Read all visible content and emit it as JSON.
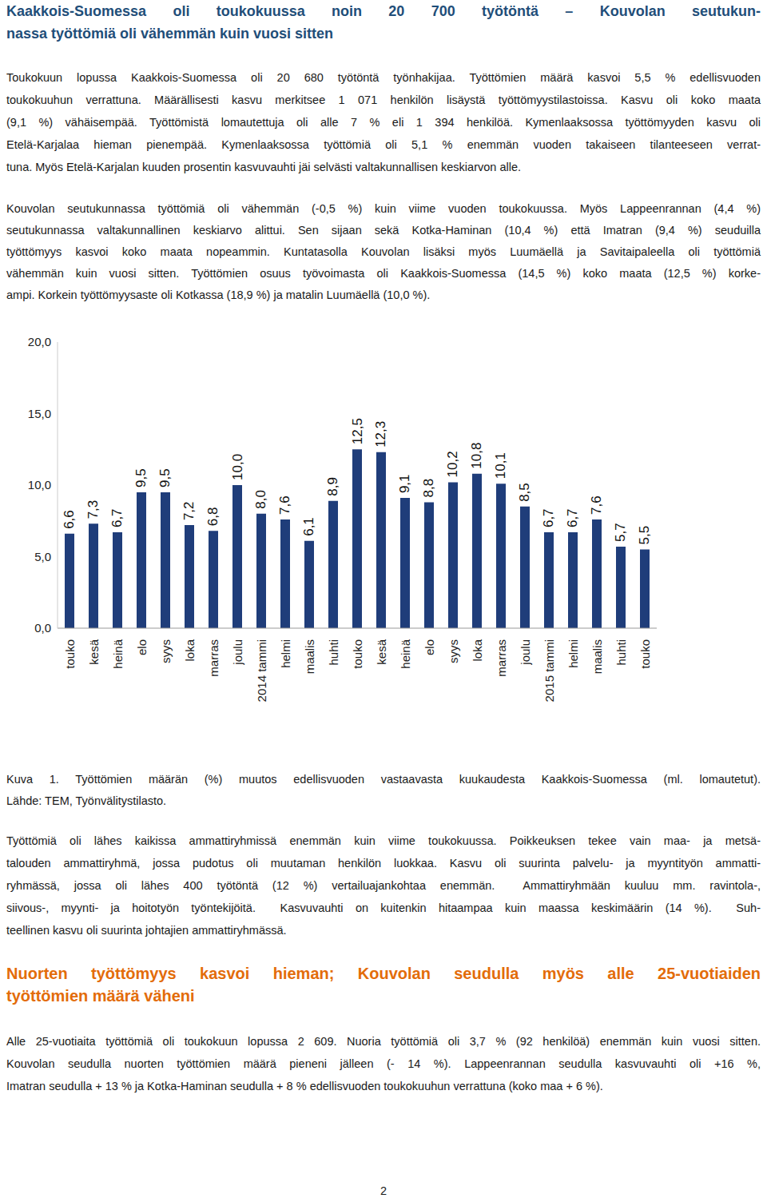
{
  "header": {
    "title_lines": [
      "Kaakkois-Suomessa oli toukokuussa noin 20 700 työtöntä – Kouvolan seutukun-",
      "nassa työttömiä oli vähemmän kuin vuosi sitten"
    ]
  },
  "paragraphs": [
    [
      "Toukokuun lopussa Kaakkois-Suomessa oli 20 680 työtöntä työnhakijaa. Työttömien määrä kasvoi 5,5 % edellisvuoden",
      "toukokuuhun verrattuna. Määrällisesti kasvu merkitsee 1 071 henkilön lisäystä työttömyystilastoissa. Kasvu oli koko maata",
      "(9,1 %) vähäisempää. Työttömistä lomautettuja oli alle 7 % eli 1 394 henkilöä. Kymenlaaksossa työttömyyden kasvu oli",
      "Etelä-Karjalaa hieman pienempää. Kymenlaaksossa työttömiä oli 5,1 % enemmän vuoden takaiseen tilanteeseen verrat-",
      "tuna. Myös Etelä-Karjalan kuuden prosentin kasvuvauhti jäi selvästi valtakunnallisen keskiarvon alle."
    ],
    [
      "Kouvolan seutukunnassa työttömiä oli vähemmän (-0,5 %) kuin viime vuoden toukokuussa. Myös Lappeenrannan (4,4 %)",
      "seutukunnassa valtakunnallinen keskiarvo alittui. Sen sijaan sekä Kotka-Haminan (10,4 %) että Imatran (9,4 %) seuduilla",
      "työttömyys kasvoi koko maata nopeammin. Kuntatasolla Kouvolan lisäksi myös Luumäellä ja Savitaipaleella oli työttömiä",
      "vähemmän kuin vuosi sitten. Työttömien osuus työvoimasta oli Kaakkois-Suomessa (14,5 %) koko maata (12,5 %) korke-",
      "ampi. Korkein työttömyysaste oli Kotkassa (18,9 %) ja matalin Luumäellä (10,0 %)."
    ]
  ],
  "chart_data": {
    "type": "bar",
    "categories": [
      "touko",
      "kesä",
      "heinä",
      "elo",
      "syys",
      "loka",
      "marras",
      "joulu",
      "2014 tammi",
      "helmi",
      "maalis",
      "huhti",
      "touko",
      "kesä",
      "heinä",
      "elo",
      "syys",
      "loka",
      "marras",
      "joulu",
      "2015 tammi",
      "helmi",
      "maalis",
      "huhti",
      "touko"
    ],
    "values": [
      6.6,
      7.3,
      6.7,
      9.5,
      9.5,
      7.2,
      6.8,
      10.0,
      8.0,
      7.6,
      6.1,
      8.9,
      12.5,
      12.3,
      9.1,
      8.8,
      10.2,
      10.8,
      10.1,
      8.5,
      6.7,
      6.7,
      7.6,
      5.7,
      5.5
    ],
    "value_labels": [
      "6,6",
      "7,3",
      "6,7",
      "9,5",
      "9,5",
      "7,2",
      "6,8",
      "10,0",
      "8,0",
      "7,6",
      "6,1",
      "8,9",
      "12,5",
      "12,3",
      "9,1",
      "8,8",
      "10,2",
      "10,8",
      "10,1",
      "8,5",
      "6,7",
      "6,7",
      "7,6",
      "5,7",
      "5,5"
    ],
    "color": "#1f3d7a",
    "ylim": [
      0,
      20
    ],
    "yticks": [
      {
        "value": 0,
        "label": "0,0"
      },
      {
        "value": 5,
        "label": "5,0"
      },
      {
        "value": 10,
        "label": "10,0"
      },
      {
        "value": 15,
        "label": "15,0"
      },
      {
        "value": 20,
        "label": "20,0"
      }
    ],
    "grid": false,
    "data_labels": true
  },
  "caption": [
    "Kuva 1. Työttömien määrän (%) muutos edellisvuoden vastaavasta kuukaudesta Kaakkois-Suomessa (ml. lomautetut).",
    "Lähde: TEM, Työnvälitystilasto."
  ],
  "paragraphs_after": [
    [
      "Työttömiä oli lähes kaikissa ammattiryhmissä enemmän kuin viime toukokuussa. Poikkeuksen tekee vain maa- ja metsä-",
      "talouden ammattiryhmä, jossa pudotus oli muutaman henkilön luokkaa. Kasvu oli suurinta palvelu- ja myyntityön ammatti-",
      "ryhmässä, jossa oli lähes 400 työtöntä (12 %) vertailuajankohtaa enemmän.  Ammattiryhmään kuuluu mm. ravintola-,",
      "siivous-, myynti- ja hoitotyön työntekijöitä.  Kasvuvauhti on kuitenkin hitaampaa kuin maassa keskimäärin (14 %).  Suh-",
      "teellinen kasvu oli suurinta johtajien ammattiryhmässä."
    ]
  ],
  "subheading": [
    "Nuorten työttömyys kasvoi hieman; Kouvolan seudulla myös alle 25-vuotiaiden",
    "työttömien määrä väheni"
  ],
  "paragraphs_end": [
    [
      "Alle 25-vuotiaita työttömiä oli toukokuun lopussa 2 609. Nuoria työttömiä oli 3,7 % (92 henkilöä) enemmän kuin vuosi sitten.",
      "Kouvolan seudulla nuorten työttömien määrä pieneni jälleen (- 14 %). Lappeenrannan seudulla kasvuvauhti oli +16 %,",
      "Imatran seudulla + 13 % ja Kotka-Haminan seudulla + 8 % edellisvuoden toukokuuhun verrattuna (koko maa + 6 %)."
    ]
  ],
  "page_number": "2"
}
